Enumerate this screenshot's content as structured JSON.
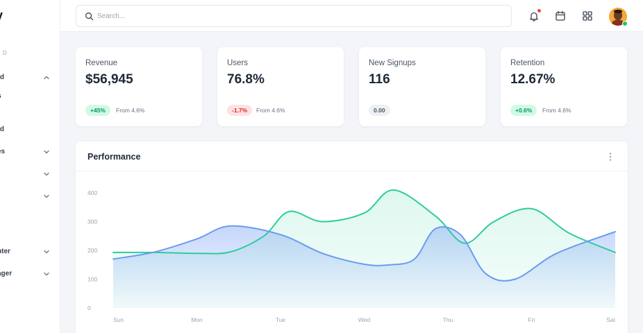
{
  "sidebar": {
    "logo": "y",
    "section_label": "R D",
    "items": [
      {
        "label": "rd",
        "has_chevron": true,
        "chevron": "up"
      },
      {
        "label": "s",
        "has_chevron": false
      },
      {
        "label": "rd",
        "has_chevron": false
      },
      {
        "label": "es",
        "has_chevron": true,
        "chevron": "down"
      },
      {
        "label": "",
        "has_chevron": true,
        "chevron": "down"
      },
      {
        "label": "",
        "has_chevron": true,
        "chevron": "down"
      },
      {
        "label": "nter",
        "has_chevron": true,
        "chevron": "down"
      },
      {
        "label": "ager",
        "has_chevron": true,
        "chevron": "down"
      }
    ]
  },
  "search": {
    "placeholder": "Search...",
    "value": "",
    "icon": "search-icon"
  },
  "toolbar": {
    "icons": [
      "bell-icon",
      "calendar-icon",
      "grid-icon"
    ],
    "has_notification": true,
    "avatar": "avatar",
    "status_color": "#22c55e"
  },
  "cards": [
    {
      "title": "Revenue",
      "value": "$56,945",
      "badge": "+45%",
      "trend": "up",
      "from": "From 4.6%"
    },
    {
      "title": "Users",
      "value": "76.8%",
      "badge": "-1.7%",
      "trend": "down",
      "from": "From 4.6%"
    },
    {
      "title": "New Signups",
      "value": "116",
      "badge": "0.00",
      "trend": "flat",
      "from": ""
    },
    {
      "title": "Retention",
      "value": "12.67%",
      "badge": "+0.6%",
      "trend": "up",
      "from": "From 4.6%"
    }
  ],
  "performance": {
    "title": "Performance",
    "menu_icon": "more-vertical-icon"
  },
  "chart_data": {
    "type": "area",
    "categories": [
      "Sun",
      "Mon",
      "Tue",
      "Wed",
      "Thu",
      "Fri",
      "Sat"
    ],
    "yticks": [
      0,
      100,
      200,
      300,
      400
    ],
    "ylim": [
      0,
      400
    ],
    "grid": false,
    "legend": "none",
    "series": [
      {
        "color": "#2ecc9a",
        "x": [
          0,
          0.5,
          1,
          1.4,
          1.8,
          2.1,
          2.5,
          3.0,
          3.35,
          3.85,
          4.2,
          4.55,
          5.0,
          5.45,
          6.0
        ],
        "values": [
          193,
          193,
          190,
          195,
          250,
          335,
          300,
          330,
          410,
          320,
          225,
          300,
          345,
          260,
          193
        ]
      },
      {
        "color": "#6a9bf0",
        "x": [
          0,
          0.5,
          1,
          1.4,
          2.0,
          2.5,
          3.0,
          3.3,
          3.6,
          3.85,
          4.15,
          4.45,
          4.8,
          5.3,
          6.0
        ],
        "values": [
          170,
          195,
          240,
          285,
          255,
          190,
          152,
          150,
          170,
          275,
          255,
          120,
          100,
          190,
          265
        ]
      }
    ]
  }
}
